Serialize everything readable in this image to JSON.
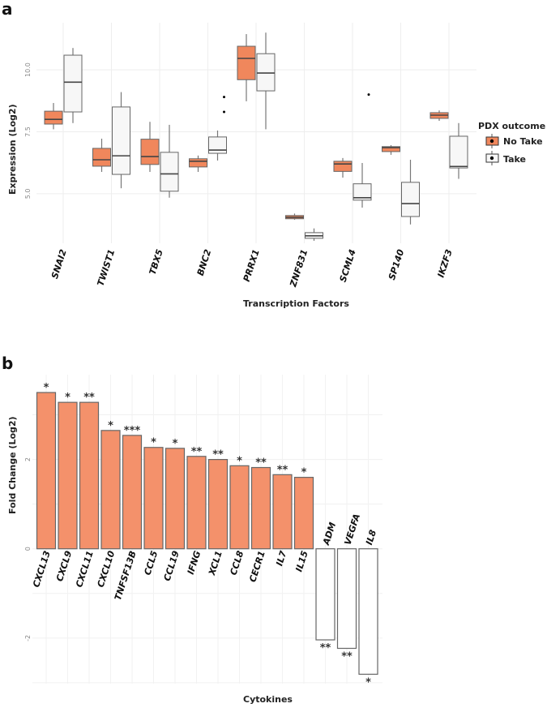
{
  "panels": {
    "a": "a",
    "b": "b"
  },
  "chart_data": [
    {
      "type": "box",
      "panel": "a",
      "xlabel": "Transcription Factors",
      "ylabel": "Expression (Log2)",
      "ylim": [
        3.0,
        11.9
      ],
      "yticks": [
        5.0,
        7.5,
        10.0
      ],
      "ytick_labels": [
        "5.0",
        "7.5",
        "10.0"
      ],
      "grid": true,
      "legend": {
        "title": "PDX outcome",
        "placement": "right",
        "entries": [
          "No Take",
          "Take"
        ]
      },
      "colors": {
        "No Take": "#f0875c",
        "Take": "#f7f7f7"
      },
      "categories": [
        "SNAI2",
        "TWIST1",
        "TBX5",
        "BNC2",
        "PRRX1",
        "ZNF831",
        "SCML4",
        "SP140",
        "IKZF3"
      ],
      "series": [
        {
          "name": "No Take",
          "boxes": [
            {
              "min": 7.6,
              "q1": 7.81,
              "median": 8.0,
              "q3": 8.33,
              "max": 8.66,
              "outliers": []
            },
            {
              "min": 5.88,
              "q1": 6.11,
              "median": 6.37,
              "q3": 6.83,
              "max": 7.22,
              "outliers": []
            },
            {
              "min": 5.88,
              "q1": 6.18,
              "median": 6.5,
              "q3": 7.2,
              "max": 7.9,
              "outliers": []
            },
            {
              "min": 5.88,
              "q1": 6.08,
              "median": 6.31,
              "q3": 6.41,
              "max": 6.54,
              "outliers": []
            },
            {
              "min": 8.73,
              "q1": 9.6,
              "median": 10.46,
              "q3": 10.95,
              "max": 11.44,
              "outliers": []
            },
            {
              "min": 3.95,
              "q1": 3.99,
              "median": 4.05,
              "q3": 4.12,
              "max": 4.2,
              "outliers": []
            },
            {
              "min": 5.65,
              "q1": 5.9,
              "median": 6.2,
              "q3": 6.31,
              "max": 6.44,
              "outliers": []
            },
            {
              "min": 6.57,
              "q1": 6.7,
              "median": 6.86,
              "q3": 6.9,
              "max": 6.96,
              "outliers": []
            },
            {
              "min": 7.94,
              "q1": 8.04,
              "median": 8.17,
              "q3": 8.27,
              "max": 8.36,
              "outliers": []
            }
          ]
        },
        {
          "name": "Take",
          "boxes": [
            {
              "min": 7.85,
              "q1": 8.3,
              "median": 9.5,
              "q3": 10.59,
              "max": 10.88,
              "outliers": []
            },
            {
              "min": 5.22,
              "q1": 5.78,
              "median": 6.53,
              "q3": 8.5,
              "max": 9.1,
              "outliers": []
            },
            {
              "min": 4.84,
              "q1": 5.1,
              "median": 5.8,
              "q3": 6.67,
              "max": 7.78,
              "outliers": []
            },
            {
              "min": 6.34,
              "q1": 6.63,
              "median": 6.76,
              "q3": 7.29,
              "max": 7.55,
              "outliers": [
                8.9,
                8.3
              ]
            },
            {
              "min": 7.6,
              "q1": 9.15,
              "median": 9.87,
              "q3": 10.65,
              "max": 11.5,
              "outliers": []
            },
            {
              "min": 3.1,
              "q1": 3.2,
              "median": 3.3,
              "q3": 3.43,
              "max": 3.6,
              "outliers": []
            },
            {
              "min": 4.44,
              "q1": 4.74,
              "median": 4.84,
              "q3": 5.4,
              "max": 6.24,
              "outliers": [
                9.0
              ]
            },
            {
              "min": 3.76,
              "q1": 4.08,
              "median": 4.6,
              "q3": 5.46,
              "max": 6.37,
              "outliers": []
            },
            {
              "min": 5.6,
              "q1": 6.04,
              "median": 6.1,
              "q3": 7.32,
              "max": 7.85,
              "outliers": []
            }
          ]
        }
      ]
    },
    {
      "type": "bar",
      "panel": "b",
      "xlabel": "Cytokines",
      "ylabel": "Fold Change (Log2)",
      "ylim": [
        -3.02,
        3.9
      ],
      "yticks": [
        -2,
        0,
        2
      ],
      "ytick_labels": [
        "-2",
        "0",
        "2"
      ],
      "grid": true,
      "colors": {
        "positive": "#f4916b",
        "negative": "#ffffff"
      },
      "categories": [
        "CXCL13",
        "CXCL9",
        "CXCL11",
        "CXCL10",
        "TNFSF13B",
        "CCL5",
        "CCL19",
        "IFNG",
        "XCL1",
        "CCL8",
        "CECR1",
        "IL7",
        "IL15",
        "ADM",
        "VEGFA",
        "IL8"
      ],
      "values": [
        3.5,
        3.28,
        3.28,
        2.65,
        2.54,
        2.27,
        2.25,
        2.07,
        2.0,
        1.86,
        1.82,
        1.66,
        1.6,
        -2.04,
        -2.23,
        -2.81
      ],
      "significance": [
        "*",
        "*",
        "**",
        "*",
        "***",
        "*",
        "*",
        "**",
        "**",
        "*",
        "**",
        "**",
        "*",
        "**",
        "**",
        "*"
      ]
    }
  ]
}
